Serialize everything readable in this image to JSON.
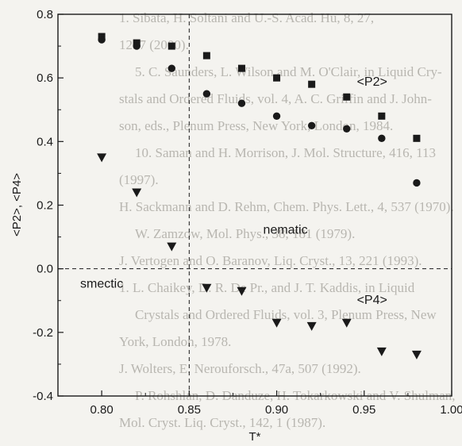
{
  "chart_data": {
    "type": "scatter",
    "xlabel": "T*",
    "ylabel": "<P2>, <P4>",
    "xlim": [
      0.775,
      1.0
    ],
    "ylim": [
      -0.4,
      0.8
    ],
    "x_ticks": [
      0.8,
      0.85,
      0.9,
      0.95,
      1.0
    ],
    "x_tick_labels": [
      "0.80",
      "0.85",
      "0.90",
      "0.95",
      "1.00"
    ],
    "y_ticks": [
      -0.4,
      -0.2,
      0.0,
      0.2,
      0.4,
      0.6,
      0.8
    ],
    "y_tick_labels": [
      "-0.4",
      "-0.2",
      "0.0",
      "0.2",
      "0.4",
      "0.6",
      "0.8"
    ],
    "grid": false,
    "reference_lines": [
      {
        "orientation": "vertical",
        "value": 0.85,
        "style": "dashed"
      },
      {
        "orientation": "horizontal",
        "value": 0.0,
        "style": "dashed"
      }
    ],
    "annotations": [
      {
        "text": "smectic",
        "x": 0.8,
        "y": -0.06
      },
      {
        "text": "nematic",
        "x": 0.905,
        "y": 0.11
      },
      {
        "text": "<P2>",
        "x": 0.9545,
        "y": 0.575
      },
      {
        "text": "<P4>",
        "x": 0.9545,
        "y": -0.11
      }
    ],
    "series": [
      {
        "marker": "square",
        "x": [
          0.8,
          0.82,
          0.84,
          0.86,
          0.88,
          0.9,
          0.92,
          0.94,
          0.96,
          0.98
        ],
        "y": [
          0.73,
          0.71,
          0.7,
          0.67,
          0.63,
          0.6,
          0.58,
          0.54,
          0.48,
          0.41
        ]
      },
      {
        "marker": "circle",
        "x": [
          0.8,
          0.82,
          0.84,
          0.86,
          0.88,
          0.9,
          0.92,
          0.94,
          0.96,
          0.98
        ],
        "y": [
          0.72,
          0.7,
          0.63,
          0.55,
          0.52,
          0.48,
          0.45,
          0.44,
          0.41,
          0.27
        ]
      },
      {
        "marker": "triangle-down",
        "x": [
          0.8,
          0.82,
          0.84,
          0.86,
          0.88,
          0.9,
          0.92,
          0.94,
          0.96,
          0.98
        ],
        "y": [
          0.35,
          0.24,
          0.07,
          -0.06,
          -0.07,
          -0.17,
          -0.18,
          -0.17,
          -0.26,
          -0.27
        ]
      }
    ]
  },
  "background_text": [
    "1. Sibata, H. Soltani and U.-S. Acad. Hu, 8, 27,",
    "1257 (2000).",
    "5. C. Saunders, L. Wilson and M. O'Clair, in Liquid Cry-",
    "stals and Ordered Fluids, vol. 4, A. C. Griffin and J. John-",
    "son, eds., Plenum Press, New York, London, 1984.",
    "10. Saman and H. Morrison, J. Mol. Structure, 416, 113",
    "(1997).",
    "H. Sackmann and D. Rehm, Chem. Phys. Lett., 4, 537 (1970).",
    "W. Zamzow, Mol. Phys., 38, 181 (1979).",
    "J. Vertogen and O. Baranov, Liq. Cryst., 13, 221 (1993).",
    "1. L. Chaikey, D. R. De Pr., and J. T. Kaddis, in Liquid",
    "Crystals and Ordered Fluids, vol. 3, Plenum Press, New",
    "York, London, 1978.",
    "J. Wolters, E. Nerouforsch., 47a, 507 (1992).",
    "P. Rohshlan, D. Danduze, H. Tokarkowski and V. Shulman,",
    "Mol. Cryst. Liq. Cryst., 142, 1 (1987)."
  ]
}
